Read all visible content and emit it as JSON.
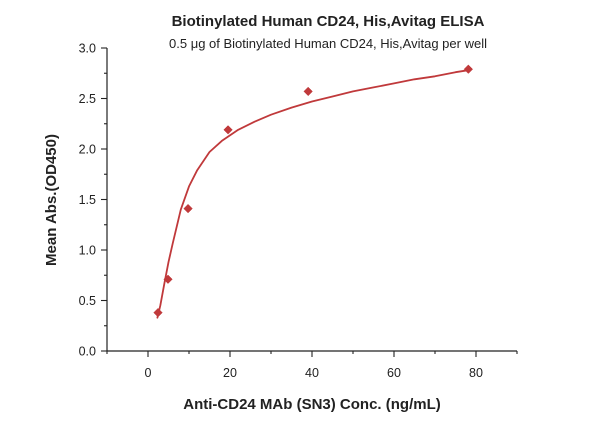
{
  "chart_data": {
    "type": "scatter",
    "title": "Biotinylated Human CD24, His,Avitag ELISA",
    "subtitle": "0.5 μg of Biotinylated Human CD24, His,Avitag per well",
    "xlabel": "Anti-CD24 MAb (SN3) Conc. (ng/mL)",
    "ylabel": "Mean Abs.(OD450)",
    "xlim": [
      -10,
      90
    ],
    "ylim": [
      0,
      3.0
    ],
    "xticks": [
      0,
      20,
      40,
      60,
      80
    ],
    "yticks": [
      0.0,
      0.5,
      1.0,
      1.5,
      2.0,
      2.5,
      3.0
    ],
    "xtick_labels": [
      "0",
      "20",
      "40",
      "60",
      "80"
    ],
    "ytick_labels": [
      "0.0",
      "0.5",
      "1.0",
      "1.5",
      "2.0",
      "2.5",
      "3.0"
    ],
    "grid": false,
    "colors": {
      "series": "#c0393b",
      "axis": "#222222"
    },
    "series": [
      {
        "marker": "diamond",
        "x": [
          2.44,
          4.88,
          9.77,
          19.53,
          39.06,
          78.13
        ],
        "y": [
          0.38,
          0.71,
          1.41,
          2.19,
          2.57,
          2.79
        ],
        "fit_curve": {
          "type": "saturation",
          "x": [
            2.3,
            3,
            4,
            5,
            6,
            8,
            10,
            12,
            15,
            18,
            22,
            26,
            30,
            35,
            40,
            45,
            50,
            55,
            60,
            65,
            70,
            75,
            78.13
          ],
          "y": [
            0.33,
            0.45,
            0.67,
            0.88,
            1.06,
            1.4,
            1.63,
            1.79,
            1.97,
            2.08,
            2.19,
            2.27,
            2.34,
            2.41,
            2.47,
            2.52,
            2.57,
            2.61,
            2.65,
            2.69,
            2.72,
            2.76,
            2.78
          ]
        }
      }
    ]
  }
}
